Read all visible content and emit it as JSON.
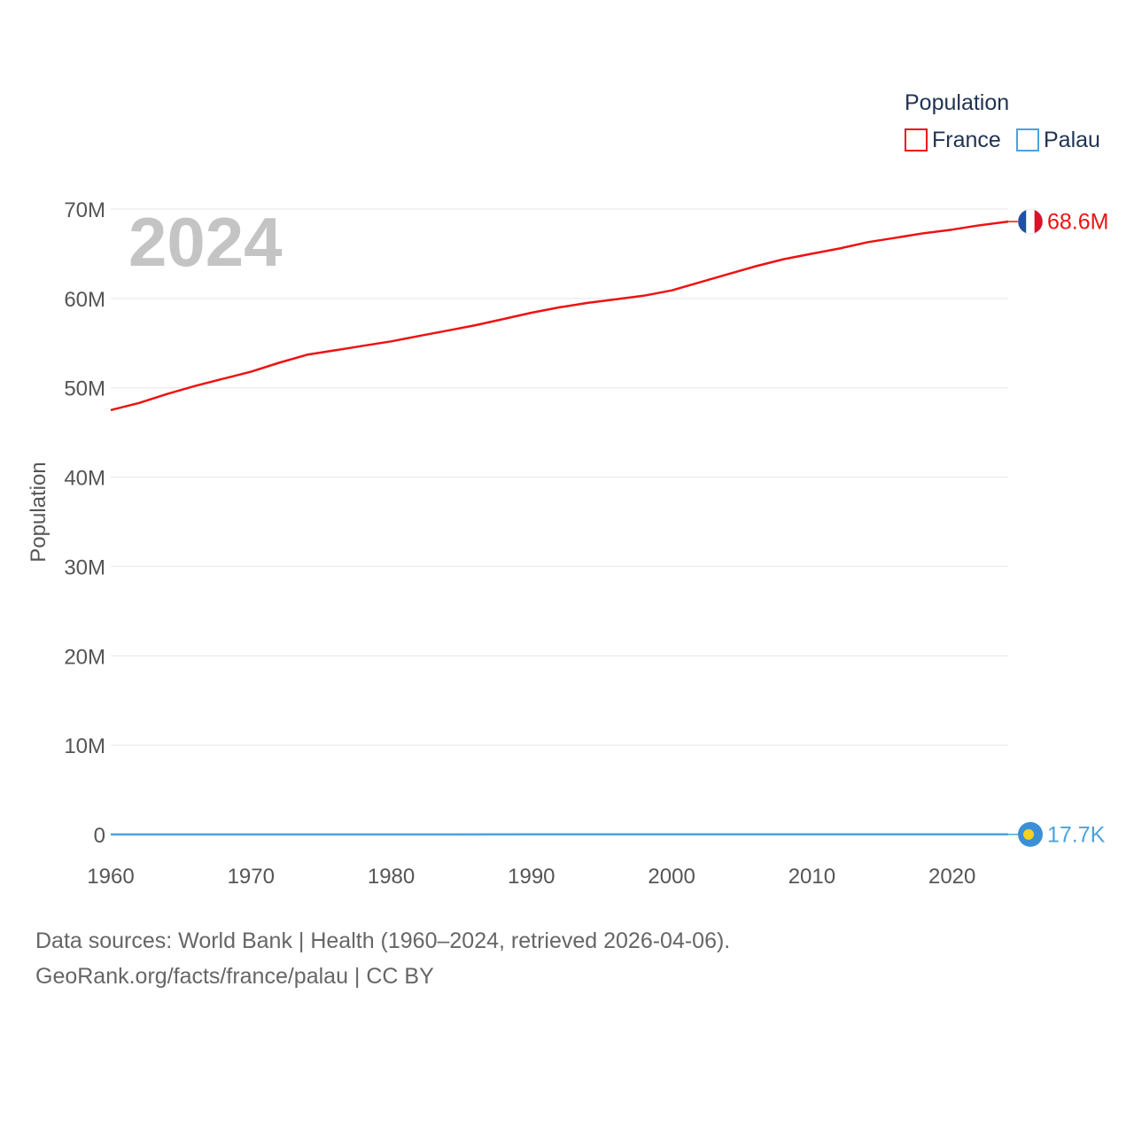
{
  "chart_data": {
    "type": "line",
    "title": "",
    "current_year": "2024",
    "xlabel": "",
    "ylabel": "Population",
    "xlim": [
      1960,
      2024
    ],
    "ylim": [
      0,
      70000000
    ],
    "x_ticks": [
      {
        "value": 1960,
        "label": "1960"
      },
      {
        "value": 1970,
        "label": "1970"
      },
      {
        "value": 1980,
        "label": "1980"
      },
      {
        "value": 1990,
        "label": "1990"
      },
      {
        "value": 2000,
        "label": "2000"
      },
      {
        "value": 2010,
        "label": "2010"
      },
      {
        "value": 2020,
        "label": "2020"
      }
    ],
    "y_ticks": [
      {
        "value": 0,
        "label": "0"
      },
      {
        "value": 10000000,
        "label": "10M"
      },
      {
        "value": 20000000,
        "label": "20M"
      },
      {
        "value": 30000000,
        "label": "30M"
      },
      {
        "value": 40000000,
        "label": "40M"
      },
      {
        "value": 50000000,
        "label": "50M"
      },
      {
        "value": 60000000,
        "label": "60M"
      },
      {
        "value": 70000000,
        "label": "70M"
      }
    ],
    "legend": {
      "title": "Population",
      "position": "top-right",
      "entries": [
        {
          "label": "France",
          "color": "#ee1111"
        },
        {
          "label": "Palau",
          "color": "#4aa3df"
        }
      ]
    },
    "series": [
      {
        "name": "France",
        "color": "#ee1111",
        "end_label": "68.6M",
        "flag": "france-flag",
        "points": [
          [
            1960,
            47500000
          ],
          [
            1962,
            48300000
          ],
          [
            1964,
            49300000
          ],
          [
            1966,
            50200000
          ],
          [
            1968,
            51000000
          ],
          [
            1970,
            51800000
          ],
          [
            1972,
            52800000
          ],
          [
            1974,
            53700000
          ],
          [
            1976,
            54200000
          ],
          [
            1978,
            54700000
          ],
          [
            1980,
            55200000
          ],
          [
            1982,
            55800000
          ],
          [
            1984,
            56400000
          ],
          [
            1986,
            57000000
          ],
          [
            1988,
            57700000
          ],
          [
            1990,
            58400000
          ],
          [
            1992,
            59000000
          ],
          [
            1994,
            59500000
          ],
          [
            1996,
            59900000
          ],
          [
            1998,
            60300000
          ],
          [
            2000,
            60900000
          ],
          [
            2002,
            61800000
          ],
          [
            2004,
            62700000
          ],
          [
            2006,
            63600000
          ],
          [
            2008,
            64400000
          ],
          [
            2010,
            65000000
          ],
          [
            2012,
            65600000
          ],
          [
            2014,
            66300000
          ],
          [
            2016,
            66800000
          ],
          [
            2018,
            67300000
          ],
          [
            2020,
            67700000
          ],
          [
            2022,
            68200000
          ],
          [
            2024,
            68600000
          ]
        ]
      },
      {
        "name": "Palau",
        "color": "#4aa3df",
        "end_label": "17.7K",
        "flag": "palau-flag",
        "points": [
          [
            1960,
            9600
          ],
          [
            1970,
            11500
          ],
          [
            1980,
            12200
          ],
          [
            1990,
            15100
          ],
          [
            2000,
            19700
          ],
          [
            2010,
            18500
          ],
          [
            2020,
            18000
          ],
          [
            2024,
            17700
          ]
        ]
      }
    ]
  },
  "source": {
    "line1": "Data sources: World Bank | Health (1960–2024, retrieved 2026-04-06).",
    "line2": "GeoRank.org/facts/france/palau | CC BY"
  }
}
